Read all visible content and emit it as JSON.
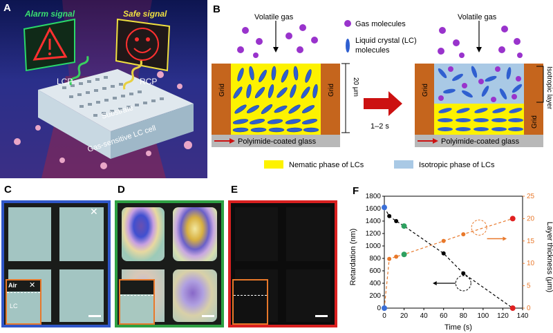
{
  "panel_labels": {
    "a": "A",
    "b": "B",
    "c": "C",
    "d": "D",
    "e": "E",
    "f": "F"
  },
  "panel_a": {
    "alarm_signal": "Alarm signal",
    "safe_signal": "Safe signal",
    "lcp": "LCP",
    "rcp": "RCP",
    "substrate": "Substrate",
    "cell": "Gas-sensitive LC cell"
  },
  "panel_b": {
    "volatile_gas_left": "Volatile gas",
    "volatile_gas_right": "Volatile gas",
    "gas_molecules": "Gas molecules",
    "lc_molecules_line1": "Liquid crystal (LC)",
    "lc_molecules_line2": "molecules",
    "grid": "Grid",
    "thickness": "20 μm",
    "time": "1–2 s",
    "glass_left": "Polyimide-coated glass",
    "glass_right": "Polyimide-coated glass",
    "isotropic_layer": "Isotropic layer",
    "legend_nematic": "Nematic phase of LCs",
    "legend_isotropic": "Isotropic phase of LCs",
    "colors": {
      "nematic": "#fdf200",
      "isotropic": "#a9c9e5",
      "grid": "#c5651d",
      "glass": "#b8b8b8",
      "gas": "#9933cc",
      "lc": "#2f5fd0",
      "arrow": "#cc1111"
    }
  },
  "panel_c": {
    "air": "Air",
    "lc": "LC",
    "border": "#2f56c8"
  },
  "panel_d": {
    "border": "#2ea043"
  },
  "panel_e": {
    "border": "#d92020"
  },
  "chart_data": {
    "type": "scatter",
    "title": "",
    "xlabel": "Time (s)",
    "ylabel_left": "Retardation (nm)",
    "ylabel_right": "Layer thickness (μm)",
    "xlim": [
      0,
      140
    ],
    "ylim_left": [
      0,
      1800
    ],
    "ylim_right": [
      0,
      25
    ],
    "xticks": [
      0,
      20,
      40,
      60,
      80,
      100,
      120,
      140
    ],
    "yticks_left": [
      0,
      200,
      400,
      600,
      800,
      1000,
      1200,
      1400,
      1600,
      1800
    ],
    "yticks_right": [
      0,
      5,
      10,
      15,
      20,
      25
    ],
    "series": [
      {
        "name": "Retardation",
        "axis": "left",
        "color": "#000000",
        "x": [
          0,
          5,
          12,
          20,
          60,
          80,
          130
        ],
        "values": [
          1620,
          1480,
          1400,
          1320,
          880,
          560,
          0
        ]
      },
      {
        "name": "Layer thickness",
        "axis": "right",
        "color": "#e8782a",
        "x": [
          0,
          5,
          12,
          20,
          60,
          80,
          130
        ],
        "values": [
          0,
          11,
          11.5,
          12,
          15,
          16.5,
          20
        ]
      }
    ],
    "highlighted_points": [
      {
        "series": "Retardation",
        "x": 0,
        "value": 1620,
        "color": "#3a6fd8"
      },
      {
        "series": "Retardation",
        "x": 20,
        "value": 1320,
        "color": "#2ea060"
      },
      {
        "series": "Retardation",
        "x": 130,
        "value": 0,
        "color": "#e02020"
      },
      {
        "series": "Layer thickness",
        "x": 0,
        "value": 0,
        "color": "#3a6fd8"
      },
      {
        "series": "Layer thickness",
        "x": 20,
        "value": 12,
        "color": "#2ea060"
      },
      {
        "series": "Layer thickness",
        "x": 130,
        "value": 20,
        "color": "#e02020"
      }
    ]
  }
}
